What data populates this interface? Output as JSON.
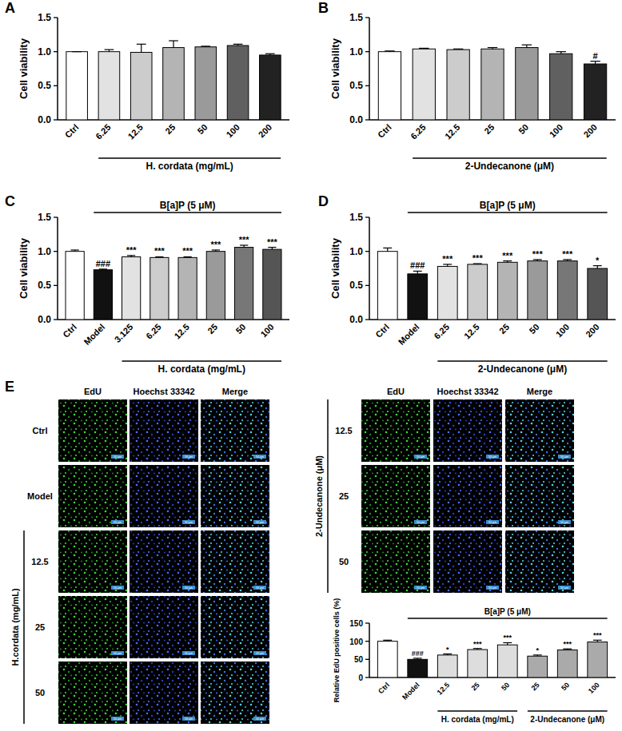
{
  "chart_data": [
    {
      "type": "bar",
      "panel": "A",
      "y_label": "Cell viability",
      "categories": [
        "Ctrl",
        "6.25",
        "12.5",
        "25",
        "50",
        "100",
        "200"
      ],
      "values": [
        1.0,
        1.0,
        0.99,
        1.06,
        1.07,
        1.09,
        0.95
      ],
      "errors": [
        0.0,
        0.03,
        0.12,
        0.1,
        0.01,
        0.02,
        0.02
      ],
      "colors": [
        "#ffffff",
        "#e2e2e2",
        "#cccccc",
        "#b4b4b4",
        "#9a9a9a",
        "#606060",
        "#222222"
      ],
      "annotations": [
        null,
        null,
        null,
        null,
        null,
        null,
        null
      ],
      "ylim": [
        0,
        1.5
      ],
      "yticks": [
        {
          "value": 0,
          "label": "0.0"
        },
        {
          "value": 0.5,
          "label": "0.5"
        },
        {
          "value": 1,
          "label": "1.0"
        },
        {
          "value": 1.5,
          "label": "1.5"
        }
      ],
      "bottom_brackets": [
        {
          "label": "H. cordata (mg/mL)",
          "start": 1,
          "end": 6
        }
      ]
    },
    {
      "type": "bar",
      "panel": "B",
      "y_label": "Cell viability",
      "categories": [
        "Ctrl",
        "6.25",
        "12.5",
        "25",
        "50",
        "100",
        "200"
      ],
      "values": [
        1.0,
        1.04,
        1.03,
        1.04,
        1.06,
        0.97,
        0.82
      ],
      "errors": [
        0.01,
        0.01,
        0.01,
        0.02,
        0.04,
        0.03,
        0.04
      ],
      "colors": [
        "#ffffff",
        "#e2e2e2",
        "#cccccc",
        "#b4b4b4",
        "#9a9a9a",
        "#606060",
        "#222222"
      ],
      "annotations": [
        null,
        null,
        null,
        null,
        null,
        null,
        "#"
      ],
      "ylim": [
        0,
        1.5
      ],
      "yticks": [
        {
          "value": 0,
          "label": "0.0"
        },
        {
          "value": 0.5,
          "label": "0.5"
        },
        {
          "value": 1,
          "label": "1.0"
        },
        {
          "value": 1.5,
          "label": "1.5"
        }
      ],
      "bottom_brackets": [
        {
          "label": "2-Undecanone (μM)",
          "start": 1,
          "end": 6
        }
      ]
    },
    {
      "type": "bar",
      "panel": "C",
      "y_label": "Cell viability",
      "categories": [
        "Ctrl",
        "Model",
        "3.125",
        "6.25",
        "12.5",
        "25",
        "50",
        "100"
      ],
      "values": [
        1.0,
        0.73,
        0.92,
        0.91,
        0.91,
        1.0,
        1.06,
        1.03
      ],
      "errors": [
        0.02,
        0.01,
        0.02,
        0.01,
        0.01,
        0.02,
        0.03,
        0.03
      ],
      "colors": [
        "#ffffff",
        "#111111",
        "#e2e2e2",
        "#cccccc",
        "#b4b4b4",
        "#9a9a9a",
        "#777777",
        "#555555"
      ],
      "annotations": [
        null,
        "###",
        "***",
        "***",
        "***",
        "***",
        "***",
        "***"
      ],
      "ylim": [
        0,
        1.5
      ],
      "yticks": [
        {
          "value": 0,
          "label": "0.0"
        },
        {
          "value": 0.5,
          "label": "0.5"
        },
        {
          "value": 1,
          "label": "1.0"
        },
        {
          "value": 1.5,
          "label": "1.5"
        }
      ],
      "top_bracket": {
        "label": "B[a]P (5 μM)",
        "start": 1,
        "end": 7
      },
      "bottom_brackets": [
        {
          "label": "H. cordata (mg/mL)",
          "start": 2,
          "end": 7
        }
      ]
    },
    {
      "type": "bar",
      "panel": "D",
      "y_label": "Cell viability",
      "categories": [
        "Ctrl",
        "Model",
        "6.25",
        "12.5",
        "25",
        "50",
        "100",
        "200"
      ],
      "values": [
        1.0,
        0.67,
        0.78,
        0.81,
        0.84,
        0.86,
        0.86,
        0.75
      ],
      "errors": [
        0.05,
        0.04,
        0.03,
        0.01,
        0.02,
        0.02,
        0.02,
        0.04
      ],
      "colors": [
        "#ffffff",
        "#111111",
        "#e2e2e2",
        "#cccccc",
        "#b4b4b4",
        "#9a9a9a",
        "#777777",
        "#555555"
      ],
      "annotations": [
        null,
        "###",
        "***",
        "***",
        "***",
        "***",
        "***",
        "*"
      ],
      "ylim": [
        0,
        1.5
      ],
      "yticks": [
        {
          "value": 0,
          "label": "0.0"
        },
        {
          "value": 0.5,
          "label": "0.5"
        },
        {
          "value": 1,
          "label": "1.0"
        },
        {
          "value": 1.5,
          "label": "1.5"
        }
      ],
      "top_bracket": {
        "label": "B[a]P (5 μM)",
        "start": 1,
        "end": 7
      },
      "bottom_brackets": [
        {
          "label": "2-Undecanone (μM)",
          "start": 2,
          "end": 7
        }
      ]
    },
    {
      "type": "bar",
      "y_label": "Relative EdU positive cells (%)",
      "categories": [
        "Ctrl",
        "Model",
        "12.5",
        "25",
        "50",
        "25",
        "50",
        "100"
      ],
      "values": [
        100,
        50,
        62,
        77,
        90,
        59,
        76,
        98
      ],
      "errors": [
        3,
        3,
        3,
        3,
        6,
        3,
        3,
        5
      ],
      "colors": [
        "#ffffff",
        "#111111",
        "#dddddd",
        "#dddddd",
        "#dddddd",
        "#aaaaaa",
        "#aaaaaa",
        "#aaaaaa"
      ],
      "annotations": [
        null,
        "###",
        "*",
        "***",
        "***",
        "*",
        "***",
        "***"
      ],
      "ylim": [
        0,
        150
      ],
      "yticks": [
        0,
        50,
        100,
        150
      ],
      "top_bracket": {
        "label": "B[a]P (5 μM)",
        "start": 1,
        "end": 7
      },
      "bottom_brackets": [
        {
          "label": "H. cordata (mg/mL)",
          "start": 2,
          "end": 4
        },
        {
          "label": "2-Undecanone (μM)",
          "start": 5,
          "end": 7
        }
      ]
    }
  ],
  "image_grid": {
    "panel": "E",
    "scale_bar": "50 μm",
    "left": {
      "columns": [
        "EdU",
        "Hoechst 33342",
        "Merge"
      ],
      "rows": [
        "Ctrl",
        "Model",
        "12.5",
        "25",
        "50"
      ],
      "group_label": "H.cordata (mg/mL)",
      "group_start": 2,
      "group_end": 4
    },
    "right": {
      "columns": [
        "EdU",
        "Hoechst 33342",
        "Merge"
      ],
      "rows": [
        "12.5",
        "25",
        "50"
      ],
      "group_label": "2-Undecanone (μM)",
      "group_start": 0,
      "group_end": 2
    }
  }
}
